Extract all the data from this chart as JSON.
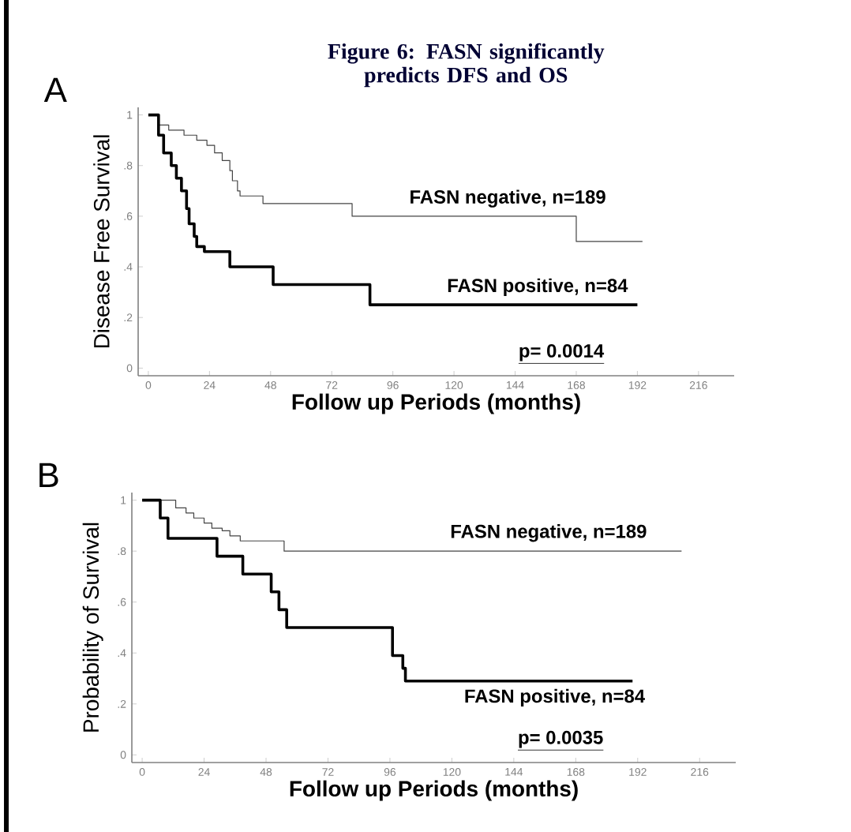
{
  "chart_data": [
    {
      "type": "step",
      "title": "Figure 6:  FASN significantly predicts DFS and OS",
      "xlabel": "Follow up Periods (months)",
      "ylabel": "Disease Free Survival",
      "annotations": [
        "A",
        "p= 0.0014"
      ],
      "xlim": [
        -4,
        230
      ],
      "ylim": [
        -0.03,
        1.03
      ],
      "xticks": [
        0,
        24,
        48,
        72,
        96,
        120,
        144,
        168,
        192,
        216
      ],
      "yticks": [
        {
          "value": 0,
          "label": "0"
        },
        {
          "value": 0.2,
          "label": ".2"
        },
        {
          "value": 0.4,
          "label": ".4"
        },
        {
          "value": 0.6,
          "label": ".6"
        },
        {
          "value": 0.8,
          "label": ".8"
        },
        1
      ],
      "grid": false,
      "legend": false,
      "series": [
        {
          "name": "FASN negative, n=189",
          "color": "#444444",
          "x": [
            0,
            4,
            8,
            14,
            19,
            23,
            26,
            29,
            32,
            33,
            35,
            36,
            45,
            80,
            168,
            194
          ],
          "values": [
            1,
            0.96,
            0.94,
            0.92,
            0.9,
            0.88,
            0.85,
            0.82,
            0.78,
            0.74,
            0.7,
            0.68,
            0.65,
            0.6,
            0.5,
            0.5
          ]
        },
        {
          "name": "FASN positive, n=84",
          "color": "#000000",
          "x": [
            0,
            4,
            6,
            9,
            11,
            13,
            15,
            16,
            18,
            19,
            22,
            32,
            49,
            87,
            192
          ],
          "values": [
            1,
            0.92,
            0.85,
            0.8,
            0.75,
            0.7,
            0.63,
            0.57,
            0.52,
            0.48,
            0.46,
            0.4,
            0.33,
            0.25,
            0.25
          ]
        }
      ]
    },
    {
      "type": "step",
      "xlabel": "Follow up Periods (months)",
      "ylabel": "Probability of Survival",
      "annotations": [
        "B",
        "p= 0.0035"
      ],
      "xlim": [
        -4,
        230
      ],
      "ylim": [
        -0.03,
        1.03
      ],
      "xticks": [
        0,
        24,
        48,
        72,
        96,
        120,
        144,
        168,
        192,
        216
      ],
      "yticks": [
        {
          "value": 0,
          "label": "0"
        },
        {
          "value": 0.2,
          "label": ".2"
        },
        {
          "value": 0.4,
          "label": ".4"
        },
        {
          "value": 0.6,
          "label": ".6"
        },
        {
          "value": 0.8,
          "label": ".8"
        },
        1
      ],
      "grid": false,
      "legend": false,
      "series": [
        {
          "name": "FASN negative, n=189",
          "color": "#444444",
          "x": [
            0,
            13,
            17,
            20,
            24,
            27,
            31,
            34,
            38,
            55,
            209
          ],
          "values": [
            1,
            0.97,
            0.95,
            0.93,
            0.91,
            0.89,
            0.88,
            0.86,
            0.84,
            0.8,
            0.8
          ]
        },
        {
          "name": "FASN positive, n=84",
          "color": "#000000",
          "x": [
            0,
            7,
            10,
            29,
            39,
            50,
            53,
            56,
            97,
            101,
            102,
            190
          ],
          "values": [
            1,
            0.93,
            0.85,
            0.78,
            0.71,
            0.64,
            0.57,
            0.5,
            0.39,
            0.34,
            0.29,
            0.29
          ]
        }
      ]
    }
  ]
}
